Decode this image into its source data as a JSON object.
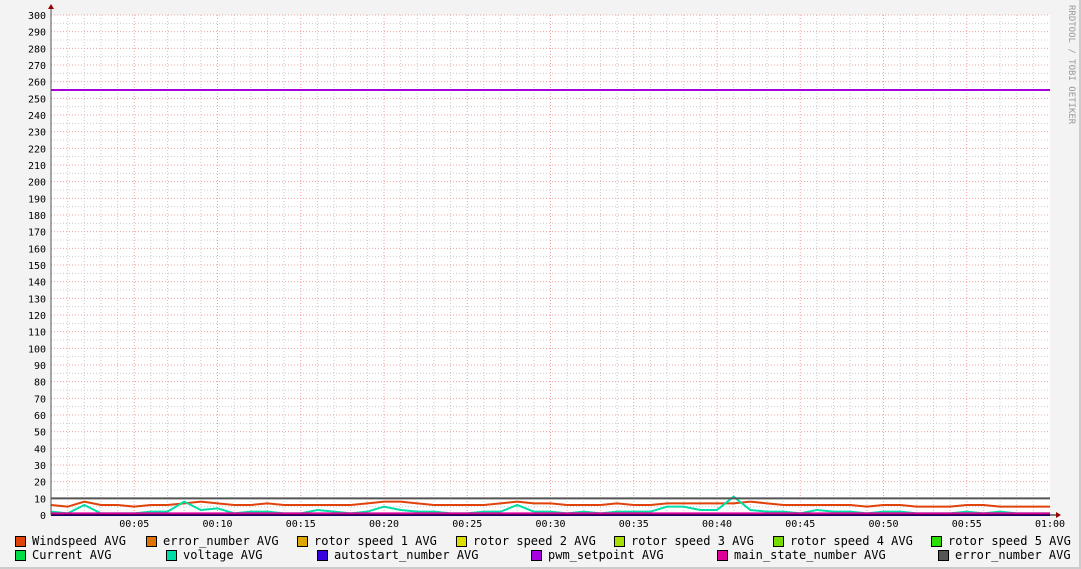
{
  "watermark": "RRDTOOL / TOBI OETIKER",
  "chart_data": {
    "type": "line",
    "title": "",
    "xlabel": "",
    "ylabel": "",
    "ylim": [
      0,
      300
    ],
    "xlim_minutes": [
      0,
      60
    ],
    "yticks": [
      0,
      10,
      20,
      30,
      40,
      50,
      60,
      70,
      80,
      90,
      100,
      110,
      120,
      130,
      140,
      150,
      160,
      170,
      180,
      190,
      200,
      210,
      220,
      230,
      240,
      250,
      260,
      270,
      280,
      290,
      300
    ],
    "xtick_labels": [
      "00:05",
      "00:10",
      "00:15",
      "00:20",
      "00:25",
      "00:30",
      "00:35",
      "00:40",
      "00:45",
      "00:50",
      "00:55",
      "01:00"
    ],
    "grid": true,
    "legend_placement": "bottom",
    "x_minutes": [
      0,
      1,
      2,
      3,
      4,
      5,
      6,
      7,
      8,
      9,
      10,
      11,
      12,
      13,
      14,
      15,
      16,
      17,
      18,
      19,
      20,
      21,
      22,
      23,
      24,
      25,
      26,
      27,
      28,
      29,
      30,
      31,
      32,
      33,
      34,
      35,
      36,
      37,
      38,
      39,
      40,
      41,
      42,
      43,
      44,
      45,
      46,
      47,
      48,
      49,
      50,
      51,
      52,
      53,
      54,
      55,
      56,
      57,
      58,
      59,
      60
    ],
    "series": [
      {
        "name": "Windspeed AVG",
        "color": "#e0420a",
        "values": [
          6,
          5,
          8,
          6,
          6,
          5,
          6,
          6,
          7,
          8,
          7,
          6,
          6,
          7,
          6,
          6,
          6,
          6,
          6,
          7,
          8,
          8,
          7,
          6,
          6,
          6,
          6,
          7,
          8,
          7,
          7,
          6,
          6,
          6,
          7,
          6,
          6,
          7,
          7,
          7,
          7,
          7,
          8,
          7,
          6,
          6,
          6,
          6,
          6,
          5,
          6,
          6,
          5,
          5,
          5,
          6,
          6,
          5,
          5,
          5,
          5
        ]
      },
      {
        "name": "error_number AVG",
        "color": "#dd7307",
        "values": [
          0,
          0,
          0,
          0,
          0,
          0,
          0,
          0,
          0,
          0,
          0,
          0,
          0,
          0,
          0,
          0,
          0,
          0,
          0,
          0,
          0,
          0,
          0,
          0,
          0,
          0,
          0,
          0,
          0,
          0,
          0,
          0,
          0,
          0,
          0,
          0,
          0,
          0,
          0,
          0,
          0,
          0,
          0,
          0,
          0,
          0,
          0,
          0,
          0,
          0,
          0,
          0,
          0,
          0,
          0,
          0,
          0,
          0,
          0,
          0,
          0
        ]
      },
      {
        "name": "rotor speed 1 AVG",
        "color": "#dda700",
        "values": []
      },
      {
        "name": "rotor speed 2 AVG",
        "color": "#dddd00",
        "values": []
      },
      {
        "name": "rotor speed 3 AVG",
        "color": "#a8dd00",
        "values": []
      },
      {
        "name": "rotor speed 4 AVG",
        "color": "#77dd00",
        "values": []
      },
      {
        "name": "rotor speed 5 AVG",
        "color": "#2bdd00",
        "values": []
      },
      {
        "name": "Current AVG",
        "color": "#00dd49",
        "values": [
          0,
          0,
          0,
          0,
          0,
          0,
          0,
          0,
          0,
          0,
          0,
          0,
          0,
          0,
          0,
          0,
          0,
          0,
          0,
          0,
          0,
          0,
          0,
          0,
          0,
          0,
          0,
          0,
          0,
          0,
          0,
          0,
          0,
          0,
          0,
          0,
          0,
          0,
          0,
          0,
          0,
          0,
          0,
          0,
          0,
          0,
          0,
          0,
          0,
          0,
          0,
          0,
          0,
          0,
          0,
          0,
          0,
          0,
          0,
          0,
          0
        ]
      },
      {
        "name": "voltage AVG",
        "color": "#00dda6",
        "values": [
          2,
          1,
          6,
          1,
          1,
          1,
          2,
          2,
          8,
          3,
          4,
          1,
          2,
          2,
          1,
          1,
          3,
          2,
          1,
          2,
          5,
          3,
          2,
          2,
          1,
          1,
          2,
          2,
          6,
          2,
          2,
          1,
          2,
          1,
          2,
          2,
          2,
          5,
          5,
          3,
          3,
          11,
          3,
          2,
          2,
          1,
          3,
          2,
          2,
          1,
          2,
          2,
          1,
          1,
          1,
          2,
          1,
          2,
          1,
          1,
          1
        ]
      },
      {
        "name": "autostart_number AVG",
        "color": "#3700dd",
        "values": [
          0,
          0,
          0,
          0,
          0,
          0,
          0,
          0,
          0,
          0,
          0,
          0,
          0,
          0,
          0,
          0,
          0,
          0,
          0,
          0,
          0,
          0,
          0,
          0,
          0,
          0,
          0,
          0,
          0,
          0,
          0,
          0,
          0,
          0,
          0,
          0,
          0,
          0,
          0,
          0,
          0,
          0,
          0,
          0,
          0,
          0,
          0,
          0,
          0,
          0,
          0,
          0,
          0,
          0,
          0,
          0,
          0,
          0,
          0,
          0,
          0
        ]
      },
      {
        "name": "pwm_setpoint AVG",
        "color": "#a600dd",
        "values": [
          255,
          255,
          255,
          255,
          255,
          255,
          255,
          255,
          255,
          255,
          255,
          255,
          255,
          255,
          255,
          255,
          255,
          255,
          255,
          255,
          255,
          255,
          255,
          255,
          255,
          255,
          255,
          255,
          255,
          255,
          255,
          255,
          255,
          255,
          255,
          255,
          255,
          255,
          255,
          255,
          255,
          255,
          255,
          255,
          255,
          255,
          255,
          255,
          255,
          255,
          255,
          255,
          255,
          255,
          255,
          255,
          255,
          255,
          255,
          255,
          255
        ]
      },
      {
        "name": "main_state_number AVG",
        "color": "#dd0099",
        "values": [
          1,
          1,
          1,
          1,
          1,
          1,
          1,
          1,
          1,
          1,
          1,
          1,
          1,
          1,
          1,
          1,
          1,
          1,
          1,
          1,
          1,
          1,
          1,
          1,
          1,
          1,
          1,
          1,
          1,
          1,
          1,
          1,
          1,
          1,
          1,
          1,
          1,
          1,
          1,
          1,
          1,
          1,
          1,
          1,
          1,
          1,
          1,
          1,
          1,
          1,
          1,
          1,
          1,
          1,
          1,
          1,
          1,
          1,
          1,
          1,
          1
        ]
      },
      {
        "name": "error_number AVG",
        "color": "#555555",
        "values": [
          10,
          10,
          10,
          10,
          10,
          10,
          10,
          10,
          10,
          10,
          10,
          10,
          10,
          10,
          10,
          10,
          10,
          10,
          10,
          10,
          10,
          10,
          10,
          10,
          10,
          10,
          10,
          10,
          10,
          10,
          10,
          10,
          10,
          10,
          10,
          10,
          10,
          10,
          10,
          10,
          10,
          10,
          10,
          10,
          10,
          10,
          10,
          10,
          10,
          10,
          10,
          10,
          10,
          10,
          10,
          10,
          10,
          10,
          10,
          10,
          10
        ]
      }
    ]
  }
}
